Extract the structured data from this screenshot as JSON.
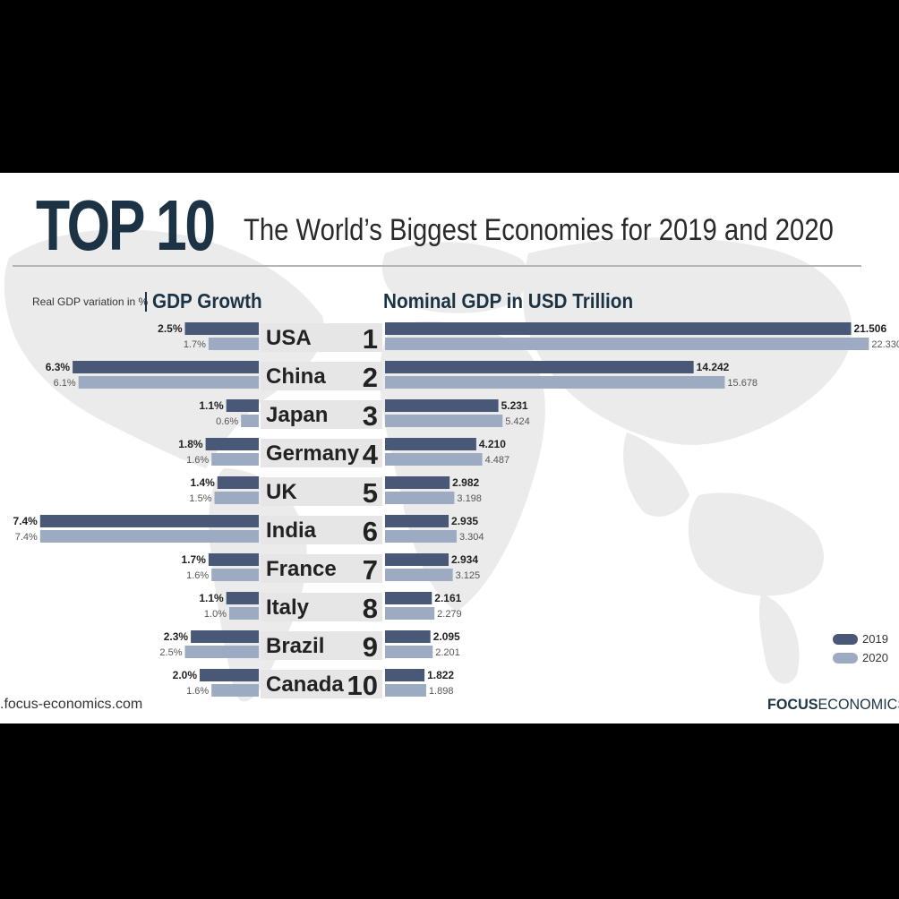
{
  "header": {
    "big_title": "TOP 10",
    "subtitle": "The World’s Biggest Economies for 2019 and 2020"
  },
  "growth_caption": "Real GDP variation in %",
  "growth_title": "GDP Growth",
  "gdp_title": "Nominal GDP in USD Trillion",
  "legend": [
    {
      "label": "2019",
      "color": "#4a5878"
    },
    {
      "label": "2020",
      "color": "#9dabc2"
    }
  ],
  "footer": {
    "website": ".focus-economics.com",
    "brand_bold": "FOCUS",
    "brand_regular": "ECONOMICS"
  },
  "chart_data": {
    "type": "bar",
    "title": "The World’s Biggest Economies for 2019 and 2020",
    "categories": [
      "USA",
      "China",
      "Japan",
      "Germany",
      "UK",
      "India",
      "France",
      "Italy",
      "Brazil",
      "Canada"
    ],
    "ranks": [
      "1",
      "2",
      "3",
      "4",
      "5",
      "6",
      "7",
      "8",
      "9",
      "10"
    ],
    "growth": {
      "label": "GDP Growth",
      "unit": "%",
      "series": [
        {
          "name": "2019",
          "values": [
            2.5,
            6.3,
            1.1,
            1.8,
            1.4,
            7.4,
            1.7,
            1.1,
            2.3,
            2.0
          ],
          "labels": [
            "2.5%",
            "6.3%",
            "1.1%",
            "1.8%",
            "1.4%",
            "7.4%",
            "1.7%",
            "1.1%",
            "2.3%",
            "2.0%"
          ]
        },
        {
          "name": "2020",
          "values": [
            1.7,
            6.1,
            0.6,
            1.6,
            1.5,
            7.4,
            1.6,
            1.0,
            2.5,
            1.6
          ],
          "labels": [
            "1.7%",
            "6.1%",
            "0.6%",
            "1.6%",
            "1.5%",
            "7.4%",
            "1.6%",
            "1.0%",
            "2.5%",
            "1.6%"
          ]
        }
      ]
    },
    "nominal_gdp": {
      "label": "Nominal GDP in USD Trillion",
      "series": [
        {
          "name": "2019",
          "values": [
            21.506,
            14.242,
            5.231,
            4.21,
            2.982,
            2.935,
            2.934,
            2.161,
            2.095,
            1.822
          ],
          "labels": [
            "21.506",
            "14.242",
            "5.231",
            "4.210",
            "2.982",
            "2.935",
            "2.934",
            "2.161",
            "2.095",
            "1.822"
          ]
        },
        {
          "name": "2020",
          "values": [
            22.33,
            15.678,
            5.424,
            4.487,
            3.198,
            3.304,
            3.125,
            2.279,
            2.201,
            1.898
          ],
          "labels": [
            "22.330",
            "15.678",
            "5.424",
            "4.487",
            "3.198",
            "3.304",
            "3.125",
            "2.279",
            "2.201",
            "1.898"
          ]
        }
      ]
    }
  }
}
